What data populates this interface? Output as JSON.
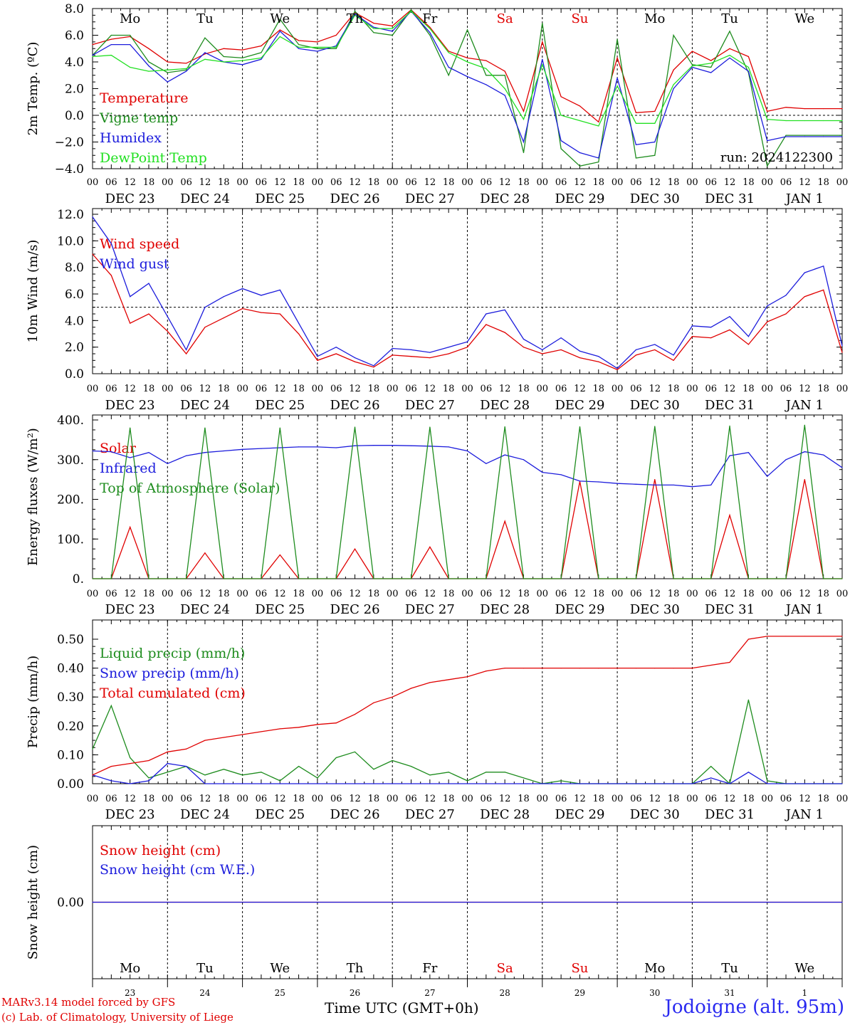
{
  "footer": {
    "model": "MARv3.14 model forced by GFS",
    "copyright": "(c) Lab. of Climatology, University of Liege",
    "time_axis": "Time UTC (GMT+0h)",
    "station": "Jodoigne (alt. 95m)"
  },
  "run_label": "run: 2024122300",
  "colors": {
    "red": "#e00000",
    "green": "#1e8c1e",
    "blue": "#1c1cdc",
    "lightgreen": "#22e022",
    "weekend": "#e00000"
  },
  "top_day_labels": [
    "Mo",
    "Tu",
    "We",
    "Th",
    "Fr",
    "Sa",
    "Su",
    "Mo",
    "Tu",
    "We"
  ],
  "bottom_day_labels": [
    "Mo",
    "Tu",
    "We",
    "Th",
    "Fr",
    "Sa",
    "Su",
    "Mo",
    "Tu",
    "We"
  ],
  "bottom_date_numbers": [
    "23",
    "24",
    "25",
    "26",
    "27",
    "28",
    "29",
    "30",
    "31",
    "1"
  ],
  "weekend_indices": [
    5,
    6
  ],
  "date_labels": [
    "DEC 23",
    "DEC 24",
    "DEC 25",
    "DEC 26",
    "DEC 27",
    "DEC 28",
    "DEC 29",
    "DEC 30",
    "DEC 31",
    "JAN  1"
  ],
  "hour_ticks": [
    "00",
    "06",
    "12",
    "18"
  ],
  "chart_data": [
    {
      "type": "line",
      "ylabel": "2m Temp. (ºC)",
      "ylim": [
        -4,
        8
      ],
      "yticks": [
        "8.0",
        "6.0",
        "4.0",
        "2.0",
        "0.0",
        "−2.0",
        "−4.0"
      ],
      "yticks_values": [
        8,
        6,
        4,
        2,
        0,
        -2,
        -4
      ],
      "ref_line": 0,
      "x_hours_from_start": [
        0,
        6,
        12,
        18,
        24,
        30,
        36,
        42,
        48,
        54,
        60,
        66,
        72,
        78,
        84,
        90,
        96,
        102,
        108,
        114,
        120,
        126,
        132,
        138,
        144,
        150,
        156,
        162,
        168,
        174,
        180,
        186,
        192,
        198,
        204,
        210,
        216,
        222,
        228,
        234,
        240
      ],
      "series": [
        {
          "name": "Temperature",
          "color": "red",
          "values": [
            5.3,
            5.7,
            5.9,
            5.0,
            4.0,
            3.9,
            4.6,
            5.0,
            4.9,
            5.2,
            6.4,
            5.6,
            5.5,
            6.0,
            7.7,
            6.9,
            6.7,
            7.9,
            6.6,
            4.8,
            4.3,
            4.1,
            3.3,
            0.3,
            5.5,
            1.4,
            0.7,
            -0.5,
            4.3,
            0.2,
            0.3,
            3.4,
            4.8,
            4.1,
            5.0,
            4.4,
            0.3,
            0.6,
            0.5,
            0.5,
            0.5
          ]
        },
        {
          "name": "Vigne temp",
          "color": "green",
          "values": [
            4.5,
            6.0,
            6.0,
            4.0,
            3.2,
            3.4,
            5.8,
            4.4,
            4.3,
            4.7,
            7.2,
            5.3,
            5.0,
            5.0,
            7.8,
            6.2,
            6.0,
            7.9,
            6.0,
            3.0,
            6.4,
            3.0,
            3.0,
            -2.8,
            6.9,
            -2.5,
            -3.8,
            -3.5,
            5.7,
            -3.2,
            -3.0,
            6.0,
            3.8,
            3.6,
            6.3,
            3.2,
            -3.8,
            -1.5,
            -1.5,
            -1.5,
            -1.5
          ]
        },
        {
          "name": "Humidex",
          "color": "blue",
          "values": [
            4.5,
            5.3,
            5.3,
            3.7,
            2.5,
            3.3,
            4.7,
            4.0,
            3.8,
            4.2,
            6.3,
            5.0,
            4.8,
            5.2,
            7.6,
            6.6,
            6.3,
            7.8,
            6.2,
            3.6,
            2.9,
            2.3,
            1.5,
            -2.0,
            4.2,
            -1.9,
            -2.8,
            -3.2,
            2.8,
            -2.2,
            -2.0,
            2.0,
            3.6,
            3.2,
            4.3,
            3.3,
            -1.9,
            -1.6,
            -1.6,
            -1.6,
            -1.6
          ]
        },
        {
          "name": "DewPoint Temp",
          "color": "lightgreen",
          "values": [
            4.4,
            4.5,
            3.6,
            3.3,
            3.4,
            3.5,
            4.2,
            4.0,
            4.1,
            4.3,
            5.9,
            5.1,
            5.1,
            5.1,
            7.5,
            6.5,
            6.5,
            7.8,
            6.5,
            4.7,
            4.0,
            3.5,
            2.0,
            -0.3,
            3.8,
            0.0,
            -0.4,
            -0.8,
            2.2,
            -0.6,
            -0.6,
            2.3,
            3.7,
            3.9,
            4.5,
            3.6,
            -0.3,
            -0.4,
            -0.4,
            -0.4,
            -0.4
          ]
        }
      ]
    },
    {
      "type": "line",
      "ylabel": "10m Wind (m/s)",
      "ylim": [
        0,
        12
      ],
      "yticks": [
        "12.0",
        "10.0",
        "8.0",
        "6.0",
        "4.0",
        "2.0",
        "0.0"
      ],
      "yticks_values": [
        12,
        10,
        8,
        6,
        4,
        2,
        0
      ],
      "ref_line": 5,
      "x_hours_from_start": [
        0,
        6,
        12,
        18,
        24,
        30,
        36,
        42,
        48,
        54,
        60,
        66,
        72,
        78,
        84,
        90,
        96,
        102,
        108,
        114,
        120,
        126,
        132,
        138,
        144,
        150,
        156,
        162,
        168,
        174,
        180,
        186,
        192,
        198,
        204,
        210,
        216,
        222,
        228,
        234,
        240
      ],
      "series": [
        {
          "name": "Wind speed",
          "color": "red",
          "values": [
            9.0,
            7.4,
            3.8,
            4.5,
            3.2,
            1.5,
            3.5,
            4.2,
            4.9,
            4.6,
            4.5,
            3.0,
            1.0,
            1.5,
            0.9,
            0.5,
            1.4,
            1.3,
            1.2,
            1.5,
            2.0,
            3.7,
            3.1,
            2.0,
            1.5,
            1.8,
            1.2,
            0.9,
            0.3,
            1.4,
            1.8,
            1.0,
            2.8,
            2.7,
            3.3,
            2.2,
            3.9,
            4.5,
            5.8,
            6.3,
            1.6
          ]
        },
        {
          "name": "Wind gust",
          "color": "blue",
          "values": [
            11.8,
            9.8,
            5.8,
            6.8,
            4.3,
            1.8,
            5.0,
            5.8,
            6.4,
            5.9,
            6.3,
            3.8,
            1.3,
            2.0,
            1.2,
            0.6,
            1.9,
            1.8,
            1.6,
            2.0,
            2.4,
            4.5,
            4.8,
            2.6,
            1.8,
            2.7,
            1.7,
            1.3,
            0.4,
            1.8,
            2.2,
            1.4,
            3.6,
            3.5,
            4.3,
            2.8,
            5.1,
            5.9,
            7.6,
            8.1,
            2.1
          ]
        }
      ]
    },
    {
      "type": "line",
      "ylabel": "Energy fluxes (W/m²)",
      "ylim": [
        0,
        400
      ],
      "yticks": [
        "400.",
        "300.",
        "200.",
        "100.",
        "0."
      ],
      "yticks_values": [
        400,
        300,
        200,
        100,
        0
      ],
      "x_hours_from_start": [
        0,
        6,
        12,
        18,
        24,
        30,
        36,
        42,
        48,
        54,
        60,
        66,
        72,
        78,
        84,
        90,
        96,
        102,
        108,
        114,
        120,
        126,
        132,
        138,
        144,
        150,
        156,
        162,
        168,
        174,
        180,
        186,
        192,
        198,
        204,
        210,
        216,
        222,
        228,
        234,
        240
      ],
      "series": [
        {
          "name": "Solar",
          "color": "red",
          "values": [
            0,
            0,
            130,
            0,
            0,
            0,
            65,
            0,
            0,
            0,
            60,
            0,
            0,
            0,
            75,
            0,
            0,
            0,
            80,
            0,
            0,
            0,
            145,
            0,
            0,
            0,
            245,
            0,
            0,
            0,
            250,
            0,
            0,
            0,
            160,
            0,
            0,
            0,
            250,
            0,
            0
          ]
        },
        {
          "name": "Infrared",
          "color": "blue",
          "values": [
            322,
            320,
            305,
            318,
            290,
            310,
            318,
            322,
            326,
            328,
            330,
            332,
            332,
            330,
            335,
            336,
            336,
            335,
            334,
            332,
            322,
            290,
            312,
            300,
            268,
            262,
            246,
            244,
            240,
            238,
            236,
            236,
            232,
            236,
            310,
            318,
            258,
            300,
            320,
            312,
            280
          ]
        },
        {
          "name": "Top of Atmosphere (Solar)",
          "color": "green",
          "values": [
            0,
            0,
            380,
            0,
            0,
            0,
            380,
            0,
            0,
            0,
            380,
            0,
            0,
            0,
            382,
            0,
            0,
            0,
            382,
            0,
            0,
            0,
            383,
            0,
            0,
            0,
            383,
            0,
            0,
            0,
            384,
            0,
            0,
            0,
            385,
            0,
            0,
            0,
            387,
            0,
            0
          ]
        }
      ]
    },
    {
      "type": "line",
      "ylabel": "Precip (mm/h)",
      "ylim": [
        0,
        0.5
      ],
      "yticks": [
        "0.50",
        "0.40",
        "0.30",
        "0.20",
        "0.10",
        "0.00"
      ],
      "yticks_values": [
        0.5,
        0.4,
        0.3,
        0.2,
        0.1,
        0.0
      ],
      "x_hours_from_start": [
        0,
        6,
        12,
        18,
        24,
        30,
        36,
        42,
        48,
        54,
        60,
        66,
        72,
        78,
        84,
        90,
        96,
        102,
        108,
        114,
        120,
        126,
        132,
        138,
        144,
        150,
        156,
        162,
        168,
        174,
        180,
        186,
        192,
        198,
        204,
        210,
        216,
        222,
        228,
        234,
        240
      ],
      "series": [
        {
          "name": "Liquid precip (mm/h)",
          "color": "green",
          "values": [
            0.12,
            0.27,
            0.09,
            0.02,
            0.04,
            0.06,
            0.03,
            0.05,
            0.03,
            0.04,
            0.01,
            0.06,
            0.02,
            0.09,
            0.11,
            0.05,
            0.08,
            0.06,
            0.03,
            0.04,
            0.01,
            0.04,
            0.04,
            0.02,
            0.0,
            0.01,
            0.0,
            0.0,
            0.0,
            0.0,
            0.0,
            0.0,
            0.0,
            0.06,
            0.0,
            0.29,
            0.01,
            0.0,
            0.0,
            0.0,
            0.0
          ]
        },
        {
          "name": "Snow precip (mm/h)",
          "color": "blue",
          "values": [
            0.03,
            0.01,
            0.0,
            0.01,
            0.07,
            0.06,
            0.0,
            0.0,
            0.0,
            0.0,
            0.0,
            0.0,
            0.0,
            0.0,
            0.0,
            0.0,
            0.0,
            0.0,
            0.0,
            0.0,
            0.0,
            0.0,
            0.0,
            0.0,
            0.0,
            0.0,
            0.0,
            0.0,
            0.0,
            0.0,
            0.0,
            0.0,
            0.0,
            0.02,
            0.0,
            0.04,
            0.0,
            0.0,
            0.0,
            0.0,
            0.0
          ]
        },
        {
          "name": "Total cumulated (cm)",
          "color": "red",
          "values": [
            0.03,
            0.06,
            0.07,
            0.08,
            0.11,
            0.12,
            0.15,
            0.16,
            0.17,
            0.18,
            0.19,
            0.195,
            0.205,
            0.21,
            0.24,
            0.28,
            0.3,
            0.33,
            0.35,
            0.36,
            0.37,
            0.39,
            0.4,
            0.4,
            0.4,
            0.4,
            0.4,
            0.4,
            0.4,
            0.4,
            0.4,
            0.4,
            0.4,
            0.41,
            0.42,
            0.5,
            0.51,
            0.51,
            0.51,
            0.51,
            0.51
          ]
        }
      ]
    },
    {
      "type": "line",
      "ylabel": "Snow height (cm)",
      "ylim": [
        -1,
        1
      ],
      "yticks": [
        "0.00"
      ],
      "yticks_values": [
        0
      ],
      "x_hours_from_start": [
        0,
        240
      ],
      "series": [
        {
          "name": "Snow height (cm)",
          "color": "red",
          "values": [
            0,
            0
          ]
        },
        {
          "name": "Snow height (cm W.E.)",
          "color": "blue",
          "values": [
            0,
            0
          ]
        }
      ]
    }
  ]
}
